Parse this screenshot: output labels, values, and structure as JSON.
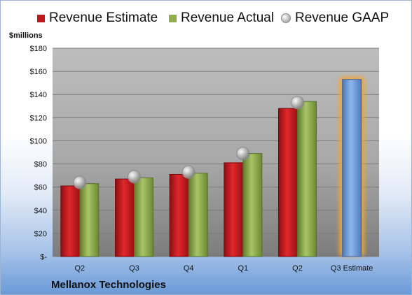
{
  "chart_data": {
    "type": "bar",
    "title": "",
    "company": "Mellanox Technologies",
    "ylabel": "$millions",
    "xlabel": "",
    "ylim": [
      0,
      180
    ],
    "yticks": [
      0,
      20,
      40,
      60,
      80,
      100,
      120,
      140,
      160,
      180
    ],
    "ytick_labels": [
      "$-",
      "$20",
      "$40",
      "$60",
      "$80",
      "$100",
      "$120",
      "$140",
      "$160",
      "$180"
    ],
    "categories": [
      "Q2",
      "Q3",
      "Q4",
      "Q1",
      "Q2",
      "Q3 Estimate"
    ],
    "series": [
      {
        "name": "Revenue Estimate",
        "kind": "bar",
        "color": "#c0171b",
        "values": [
          61,
          67,
          71,
          81,
          128,
          null
        ]
      },
      {
        "name": "Revenue Actual",
        "kind": "bar",
        "color": "#8fae4c",
        "values": [
          63,
          68,
          72,
          89,
          134,
          null
        ]
      },
      {
        "name": "Revenue GAAP",
        "kind": "marker",
        "color": "#a6a6a6",
        "values": [
          64,
          69,
          73,
          89,
          133,
          null
        ]
      },
      {
        "name": "Q3 Estimate",
        "kind": "highlight-bar",
        "color": "#6f9ad6",
        "glow": "#f4a531",
        "values": [
          null,
          null,
          null,
          null,
          null,
          153
        ]
      }
    ],
    "grid": true,
    "legend_position": "top"
  }
}
